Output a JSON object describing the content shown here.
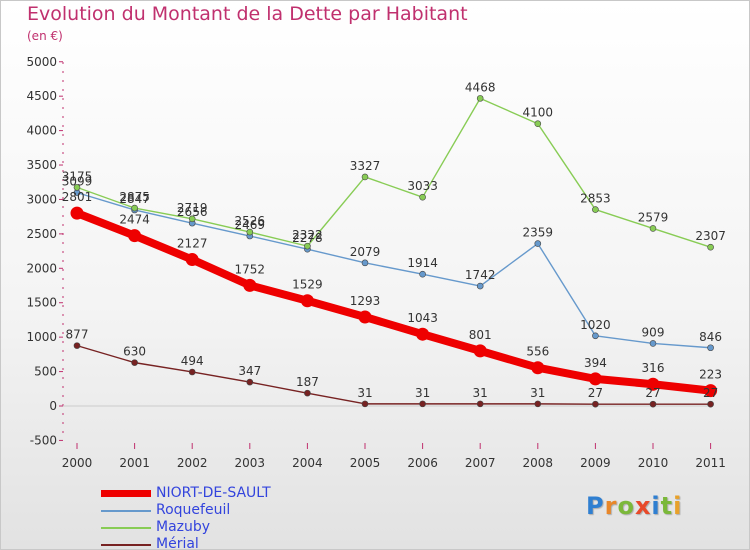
{
  "title": "Evolution du Montant de la Dette par Habitant",
  "subtitle": "(en €)",
  "brand": {
    "text": "Proxiti",
    "colors": [
      "#2f7fd1",
      "#e8872a",
      "#7bb83a",
      "#e84a2a",
      "#2f7fd1",
      "#7bb83a",
      "#e8a12a"
    ]
  },
  "chart_data": {
    "type": "line",
    "title": "Evolution du Montant de la Dette par Habitant",
    "ylabel": "(en €)",
    "xlabel": "",
    "ylim": [
      -500,
      5000
    ],
    "yticks": [
      -500,
      0,
      500,
      1000,
      1500,
      2000,
      2500,
      3000,
      3500,
      4000,
      4500,
      5000
    ],
    "x": [
      "2000",
      "2001",
      "2002",
      "2003",
      "2004",
      "2005",
      "2006",
      "2007",
      "2008",
      "2009",
      "2010",
      "2011"
    ],
    "legend_position": "bottom-left",
    "grid": false,
    "series": [
      {
        "name": "NIORT-DE-SAULT",
        "color": "#ee0000",
        "values": [
          2801,
          2474,
          2127,
          1752,
          1529,
          1293,
          1043,
          801,
          556,
          394,
          316,
          223
        ]
      },
      {
        "name": "Roquefeuil",
        "color": "#6699cc",
        "values": [
          3099,
          2847,
          2656,
          2469,
          2278,
          2079,
          1914,
          1742,
          2359,
          1020,
          909,
          846
        ]
      },
      {
        "name": "Mazuby",
        "color": "#88cc55",
        "values": [
          3175,
          2875,
          2719,
          2526,
          2322,
          3327,
          3033,
          4468,
          4100,
          2853,
          2579,
          2307
        ]
      },
      {
        "name": "Mérial",
        "color": "#772222",
        "values": [
          877,
          630,
          494,
          347,
          187,
          31,
          31,
          31,
          31,
          27,
          27,
          27
        ]
      }
    ]
  }
}
